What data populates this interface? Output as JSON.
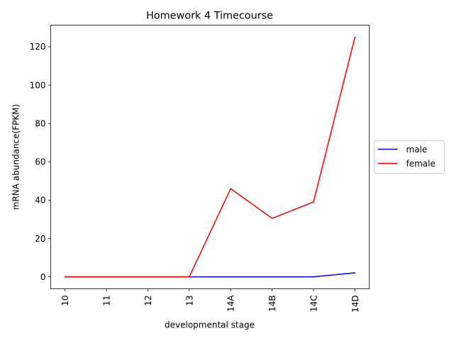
{
  "chart_data": {
    "type": "line",
    "title": "Homework 4 Timecourse",
    "xlabel": "developmental stage",
    "ylabel": "mRNA abundance(FPKM)",
    "categories": [
      "10",
      "11",
      "12",
      "13",
      "14A",
      "14B",
      "14C",
      "14D"
    ],
    "ylim": [
      -6.25,
      131.25
    ],
    "yticks": [
      0,
      20,
      40,
      60,
      80,
      100,
      120
    ],
    "grid": false,
    "legend_position": "outside right, center",
    "series": [
      {
        "name": "male",
        "color": "#0000ff",
        "values": [
          0,
          0,
          0,
          0,
          0,
          0,
          0,
          2.1
        ]
      },
      {
        "name": "female",
        "color": "#ff0000",
        "values": [
          0,
          0,
          0,
          0,
          46,
          30.5,
          39,
          125
        ]
      }
    ]
  }
}
